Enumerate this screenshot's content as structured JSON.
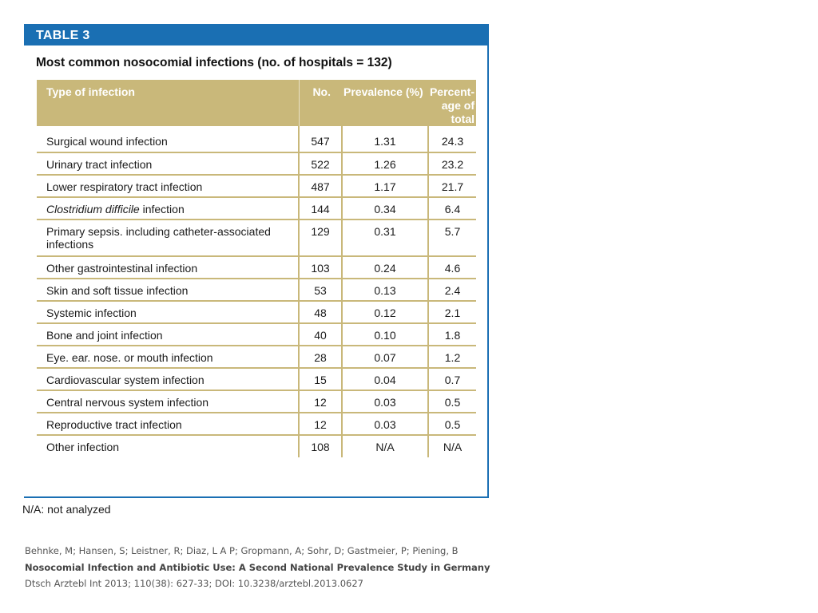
{
  "table": {
    "label": "TABLE 3",
    "caption": "Most common nosocomial infections (no. of hospitals = 132)",
    "headers": {
      "type": "Type of infection",
      "no": "No.",
      "prevalence": "Prevalence (%)",
      "pct_line1": "Percent-",
      "pct_line2": "age of",
      "pct_line3": "total"
    },
    "rows": [
      {
        "type": "Surgical wound infection",
        "no": "547",
        "prevalence": "1.31",
        "pct": "24.3"
      },
      {
        "type": "Urinary tract infection",
        "no": "522",
        "prevalence": "1.26",
        "pct": "23.2"
      },
      {
        "type": "Lower respiratory tract infection",
        "no": "487",
        "prevalence": "1.17",
        "pct": "21.7"
      },
      {
        "type_italic": "Clostridium difficile",
        "type": " infection",
        "no": "144",
        "prevalence": "0.34",
        "pct": "6.4"
      },
      {
        "type_line1": "Primary sepsis. including catheter-associated",
        "type_line2": "infections",
        "no": "129",
        "prevalence": "0.31",
        "pct": "5.7"
      },
      {
        "type": "Other gastrointestinal infection",
        "no": "103",
        "prevalence": "0.24",
        "pct": "4.6"
      },
      {
        "type": "Skin and soft tissue infection",
        "no": "53",
        "prevalence": "0.13",
        "pct": "2.4"
      },
      {
        "type": "Systemic infection",
        "no": "48",
        "prevalence": "0.12",
        "pct": "2.1"
      },
      {
        "type": "Bone and joint infection",
        "no": "40",
        "prevalence": "0.10",
        "pct": "1.8"
      },
      {
        "type": "Eye. ear. nose. or mouth infection",
        "no": "28",
        "prevalence": "0.07",
        "pct": "1.2"
      },
      {
        "type": "Cardiovascular system infection",
        "no": "15",
        "prevalence": "0.04",
        "pct": "0.7"
      },
      {
        "type": "Central nervous system infection",
        "no": "12",
        "prevalence": "0.03",
        "pct": "0.5"
      },
      {
        "type": "Reproductive tract infection",
        "no": "12",
        "prevalence": "0.03",
        "pct": "0.5"
      },
      {
        "type": "Other infection",
        "no": "108",
        "prevalence": "N/A",
        "pct": "N/A"
      }
    ],
    "colors": {
      "header_bar": "#1a6fb3",
      "column_header": "#c9b87a"
    }
  },
  "footnote": "N/A: not analyzed",
  "citation": {
    "authors": "Behnke, M; Hansen, S; Leistner, R; Diaz, L A P; Gropmann, A; Sohr, D; Gastmeier, P; Piening, B",
    "title": "Nosocomial Infection and Antibiotic Use: A Second National Prevalence Study in Germany",
    "source": "Dtsch Arztebl Int 2013; 110(38): 627-33; DOI: 10.3238/arztebl.2013.0627"
  }
}
